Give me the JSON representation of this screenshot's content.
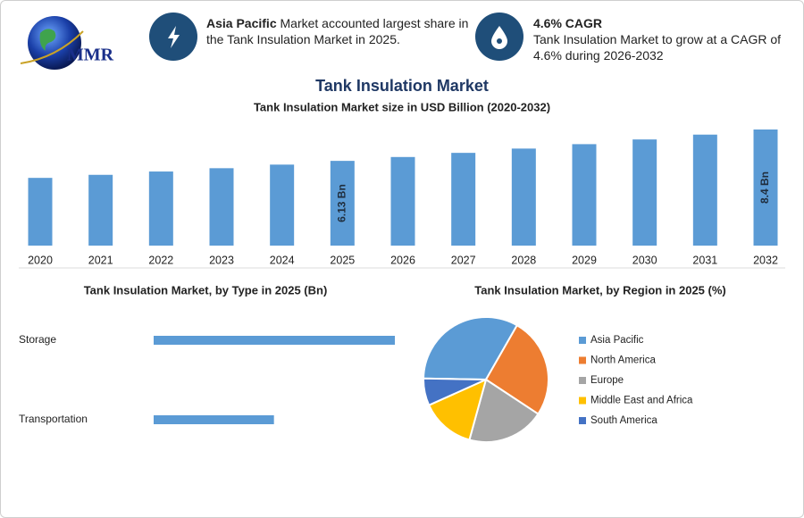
{
  "header": {
    "logo": "MMR",
    "highlights": [
      {
        "bold": "Asia Pacific",
        "text": "Market accounted largest share in the Tank Insulation Market in 2025."
      },
      {
        "title": "4.6% CAGR",
        "text": "Tank Insulation Market to grow at a CAGR of 4.6% during 2026-2032"
      }
    ]
  },
  "chart_data": [
    {
      "type": "bar",
      "title": "Tank Insulation Market",
      "subtitle": "Tank Insulation Market size in USD Billion (2020-2032)",
      "categories": [
        "2020",
        "2021",
        "2022",
        "2023",
        "2024",
        "2025",
        "2026",
        "2027",
        "2028",
        "2029",
        "2030",
        "2031",
        "2032"
      ],
      "values": [
        4.9,
        5.12,
        5.36,
        5.6,
        5.86,
        6.13,
        6.41,
        6.71,
        7.02,
        7.34,
        7.68,
        8.03,
        8.4
      ],
      "value_labels": [
        null,
        null,
        null,
        null,
        null,
        "6.13 Bn",
        null,
        null,
        null,
        null,
        null,
        null,
        "8.4 Bn"
      ],
      "color": "#5b9bd5"
    },
    {
      "type": "hbar",
      "title": "Tank Insulation Market, by Type in 2025 (Bn)",
      "categories": [
        "Storage",
        "Transportation"
      ],
      "values": [
        4.09,
        2.04
      ],
      "color": "#5b9bd5"
    },
    {
      "type": "pie",
      "title": "Tank Insulation Market, by Region in 2025 (%)",
      "categories": [
        "Asia Pacific",
        "North America",
        "Europe",
        "Middle East and Africa",
        "South America"
      ],
      "values": [
        33,
        26,
        20,
        14,
        7
      ],
      "colors": [
        "#5b9bd5",
        "#ed7d31",
        "#a5a5a5",
        "#ffc000",
        "#4472c4"
      ],
      "legend": "right"
    }
  ]
}
